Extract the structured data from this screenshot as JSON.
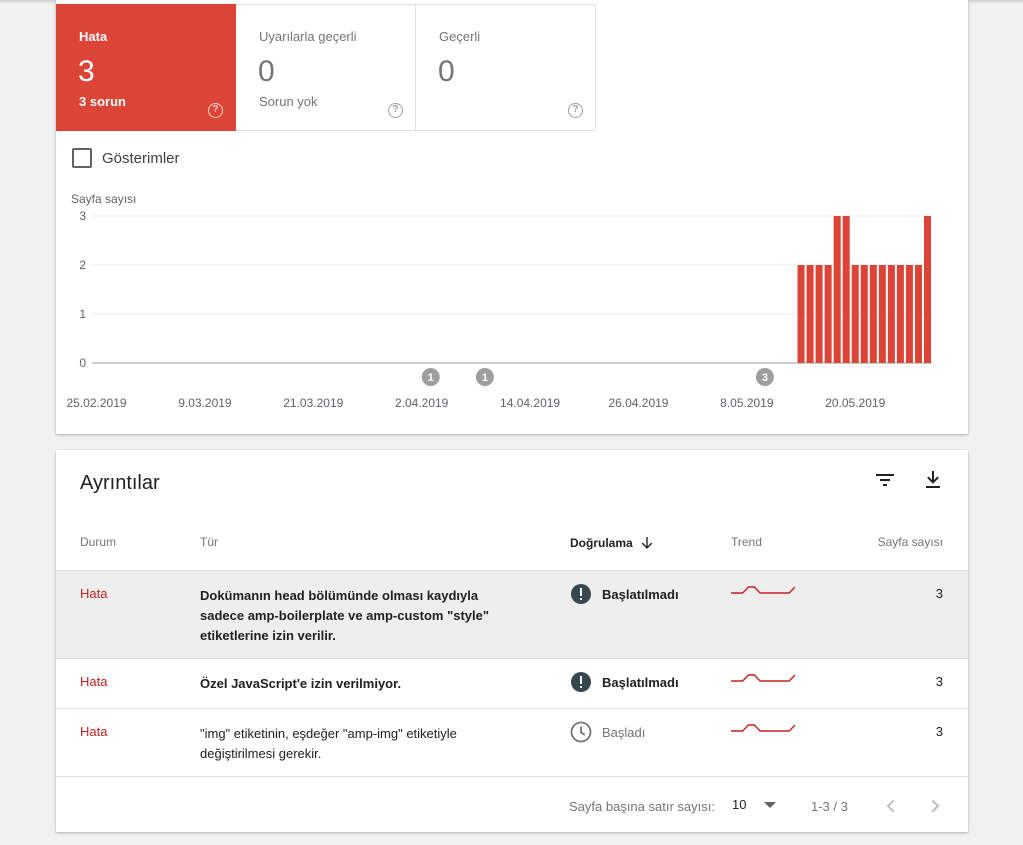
{
  "summary": {
    "tiles": [
      {
        "label": "Hata",
        "count": "3",
        "sub": "3 sorun",
        "help": "?",
        "color": "#db4437"
      },
      {
        "label": "Uyarılarla geçerli",
        "count": "0",
        "sub": "Sorun yok",
        "help": "?"
      },
      {
        "label": "Geçerli",
        "count": "0",
        "sub": "",
        "help": "?"
      }
    ],
    "impressions_label": "Gösterimler",
    "impressions_checked": false
  },
  "chart_data": {
    "type": "bar",
    "ylabel": "Sayfa sayısı",
    "ylim": [
      0,
      3
    ],
    "yticks": [
      0,
      1,
      2,
      3
    ],
    "x_tick_labels": [
      "25.02.2019",
      "9.03.2019",
      "21.03.2019",
      "2.04.2019",
      "14.04.2019",
      "26.04.2019",
      "8.05.2019",
      "20.05.2019"
    ],
    "bar_color": "#db4437",
    "grid": true,
    "x_start": "2019-02-25",
    "values": [
      0,
      0,
      0,
      0,
      0,
      0,
      0,
      0,
      0,
      0,
      0,
      0,
      0,
      0,
      0,
      0,
      0,
      0,
      0,
      0,
      0,
      0,
      0,
      0,
      0,
      0,
      0,
      0,
      0,
      0,
      0,
      0,
      0,
      0,
      0,
      0,
      0,
      0,
      0,
      0,
      0,
      0,
      0,
      0,
      0,
      0,
      0,
      0,
      0,
      0,
      0,
      0,
      0,
      0,
      0,
      0,
      0,
      0,
      0,
      0,
      0,
      0,
      0,
      0,
      0,
      0,
      0,
      0,
      0,
      0,
      0,
      0,
      0,
      0,
      0,
      0,
      0,
      0,
      2,
      2,
      2,
      2,
      3,
      3,
      2,
      2,
      2,
      2,
      2,
      2,
      2,
      2,
      3
    ],
    "annotations": [
      {
        "date": "2019-04-03",
        "label": "1"
      },
      {
        "date": "2019-04-09",
        "label": "1"
      },
      {
        "date": "2019-05-10",
        "label": "3"
      }
    ]
  },
  "details": {
    "title": "Ayrıntılar",
    "filter_icon": "filter-icon",
    "download_icon": "download-icon",
    "columns": {
      "status": "Durum",
      "type": "Tür",
      "validation": "Doğrulama",
      "trend": "Trend",
      "pages": "Sayfa sayısı"
    },
    "rows": [
      {
        "status": "Hata",
        "type": "Dokümanın head bölümünde olması kaydıyla sadece amp-boilerplate ve amp-custom \"style\" etiketlerine izin verilir.",
        "validation": "Başlatılmadı",
        "validation_icon": "alert-icon",
        "pages": "3",
        "trend": [
          0,
          0,
          0,
          1,
          1,
          0,
          0,
          0,
          0,
          0,
          0,
          1
        ]
      },
      {
        "status": "Hata",
        "type": "Özel JavaScript'e izin verilmiyor.",
        "validation": "Başlatılmadı",
        "validation_icon": "alert-icon",
        "pages": "3",
        "trend": [
          0,
          0,
          0,
          1,
          1,
          0,
          0,
          0,
          0,
          0,
          0,
          1
        ]
      },
      {
        "status": "Hata",
        "type": "\"img\" etiketinin, eşdeğer \"amp-img\" etiketiyle değiştirilmesi gerekir.",
        "validation": "Başladı",
        "validation_icon": "clock-icon",
        "pages": "3",
        "trend": [
          0,
          0,
          0,
          1,
          1,
          0,
          0,
          0,
          0,
          0,
          0,
          1
        ]
      }
    ],
    "pager": {
      "rows_per_page_label": "Sayfa başına satır sayısı:",
      "rows_per_page": "10",
      "range": "1-3 / 3"
    }
  }
}
